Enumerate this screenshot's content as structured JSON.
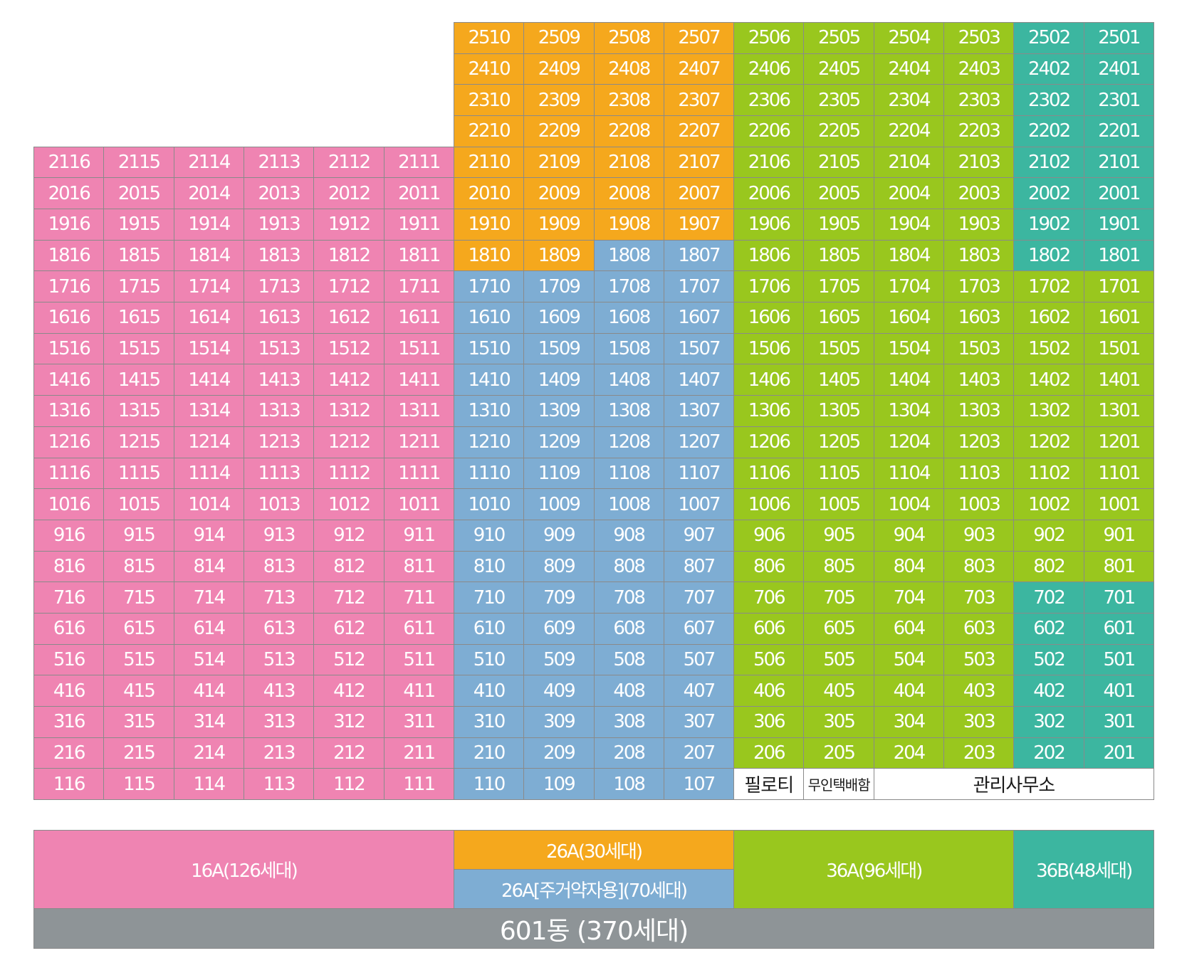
{
  "colors": {
    "pink": "#ef84b2",
    "orange": "#f5a81d",
    "blue": "#7eadd3",
    "green": "#99c71e",
    "teal": "#3cb6a0",
    "gray": "#8e9497",
    "border": "#8a8a8a"
  },
  "building": {
    "floors": 25,
    "columns": 16,
    "pink_column_max_floor": 21,
    "column_units": [
      "16",
      "15",
      "14",
      "13",
      "12",
      "11",
      "10",
      "09",
      "08",
      "07",
      "06",
      "05",
      "04",
      "03",
      "02",
      "01"
    ],
    "floor1_labels": {
      "piloti": "필로티",
      "parcel_box": "무인택배함",
      "management_office": "관리사무소"
    }
  },
  "legend": {
    "type_16a": "16A(126세대)",
    "type_26a": "26A(30세대)",
    "type_26a_rental": "26A[주거약자용](70세대)",
    "type_36a": "36A(96세대)",
    "type_36b": "36B(48세대)",
    "total": "601동 (370세대)"
  }
}
